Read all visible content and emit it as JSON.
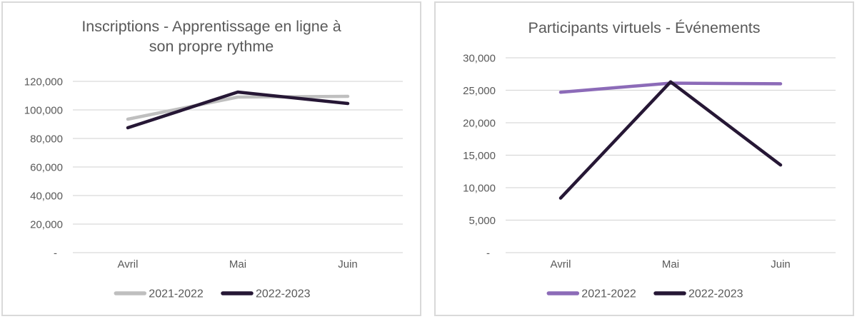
{
  "page": {
    "background": "#FFFFFF",
    "panel_border_color": "#D9D9D9",
    "grid_color": "#D9D9D9",
    "text_color": "#595959"
  },
  "chart_data": [
    {
      "type": "line",
      "title": "Inscriptions - Apprentissage en ligne à son propre rythme",
      "title_lines": [
        "Inscriptions - Apprentissage en ligne à",
        "son propre rythme"
      ],
      "categories": [
        "Avril",
        "Mai",
        "Juin"
      ],
      "series": [
        {
          "name": "2021-2022",
          "color": "#BFBFBF",
          "values": [
            93500,
            109000,
            109500
          ]
        },
        {
          "name": "2022-2023",
          "color": "#261735",
          "values": [
            87500,
            112500,
            104500
          ]
        }
      ],
      "y_axis": {
        "min": 0,
        "max": 120000,
        "step": 20000,
        "tick_labels": [
          "-",
          "20,000",
          "40,000",
          "60,000",
          "80,000",
          "100,000",
          "120,000"
        ]
      },
      "grid": true,
      "legend_position": "bottom"
    },
    {
      "type": "line",
      "title": "Participants virtuels - Événements",
      "title_lines": [
        "Participants virtuels - Événements"
      ],
      "categories": [
        "Avril",
        "Mai",
        "Juin"
      ],
      "series": [
        {
          "name": "2021-2022",
          "color": "#8C6BB8",
          "values": [
            24700,
            26100,
            26000
          ]
        },
        {
          "name": "2022-2023",
          "color": "#261735",
          "values": [
            8400,
            26300,
            13500
          ]
        }
      ],
      "y_axis": {
        "min": 0,
        "max": 30000,
        "step": 5000,
        "tick_labels": [
          "-",
          "5,000",
          "10,000",
          "15,000",
          "20,000",
          "25,000",
          "30,000"
        ]
      },
      "grid": true,
      "legend_position": "bottom"
    }
  ]
}
